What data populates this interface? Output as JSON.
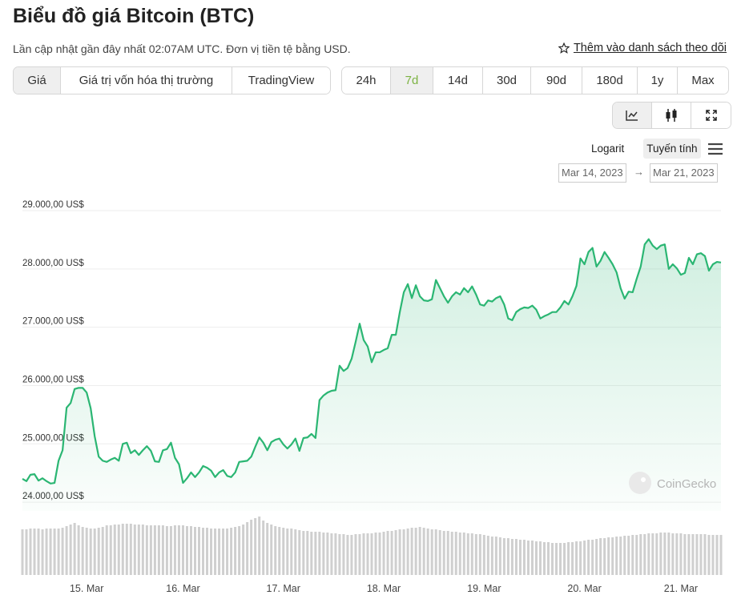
{
  "header": {
    "title": "Biểu đồ giá Bitcoin (BTC)",
    "subtitle": "Lần cập nhật gần đây nhất 02:07AM UTC. Đơn vị tiền tệ bằng USD.",
    "watchlist": "Thêm vào danh sách theo dõi"
  },
  "tabs": {
    "data_types": [
      "Giá",
      "Giá trị vốn hóa thị trường",
      "TradingView"
    ],
    "selected_data_type": 0,
    "ranges": [
      "24h",
      "7d",
      "14d",
      "30d",
      "90d",
      "180d",
      "1y",
      "Max"
    ],
    "selected_range": 1
  },
  "scale": {
    "log": "Logarit",
    "linear": "Tuyến tính",
    "selected": "linear"
  },
  "dates": {
    "from": "Mar 14, 2023",
    "separator": "→",
    "to": "Mar 21, 2023"
  },
  "chart_data": {
    "type": "line",
    "color": "#2bb673",
    "volume_color": "#cfcfcf",
    "grid": true,
    "watermark": "CoinGecko",
    "ylim": [
      23850,
      29000
    ],
    "yticks": [
      {
        "value": 24000,
        "label": "24.000,00 US$"
      },
      {
        "value": 25000,
        "label": "25.000,00 US$"
      },
      {
        "value": 26000,
        "label": "26.000,00 US$"
      },
      {
        "value": 27000,
        "label": "27.000,00 US$"
      },
      {
        "value": 28000,
        "label": "28.000,00 US$"
      },
      {
        "value": 29000,
        "label": "29.000,00 US$"
      }
    ],
    "categories": [
      null,
      null,
      null,
      null,
      null,
      null,
      null,
      null,
      null,
      null,
      null,
      null,
      null,
      null,
      null,
      null,
      "15. Mar",
      null,
      null,
      null,
      null,
      null,
      null,
      null,
      null,
      null,
      null,
      null,
      null,
      null,
      null,
      null,
      null,
      null,
      null,
      null,
      null,
      null,
      null,
      null,
      "16. Mar",
      null,
      null,
      null,
      null,
      null,
      null,
      null,
      null,
      null,
      null,
      null,
      null,
      null,
      null,
      null,
      null,
      null,
      null,
      null,
      null,
      null,
      null,
      null,
      null,
      "17. Mar",
      null,
      null,
      null,
      null,
      null,
      null,
      null,
      null,
      null,
      null,
      null,
      null,
      null,
      null,
      null,
      null,
      null,
      null,
      null,
      null,
      null,
      null,
      null,
      null,
      "18. Mar",
      null,
      null,
      null,
      null,
      null,
      null,
      null,
      null,
      null,
      null,
      null,
      null,
      null,
      null,
      null,
      null,
      null,
      null,
      null,
      null,
      null,
      null,
      null,
      null,
      "19. Mar",
      null,
      null,
      null,
      null,
      null,
      null,
      null,
      null,
      null,
      null,
      null,
      null,
      null,
      null,
      null,
      null,
      null,
      null,
      null,
      null,
      null,
      null,
      null,
      null,
      "20. Mar",
      null,
      null,
      null,
      null,
      null,
      null,
      null,
      null,
      null,
      null,
      null,
      null,
      null,
      null,
      null,
      null,
      null,
      null,
      null,
      null,
      null,
      null,
      null,
      "21. Mar",
      null,
      null,
      null,
      null,
      null,
      null,
      null,
      null,
      null,
      null
    ],
    "values": [
      24400,
      24360,
      24470,
      24480,
      24370,
      24410,
      24360,
      24320,
      24330,
      24710,
      24890,
      25620,
      25700,
      25940,
      25960,
      25960,
      25880,
      25610,
      25130,
      24780,
      24710,
      24690,
      24730,
      24760,
      24710,
      25000,
      25020,
      24840,
      24890,
      24810,
      24890,
      24960,
      24880,
      24700,
      24690,
      24890,
      24910,
      25020,
      24760,
      24650,
      24330,
      24410,
      24510,
      24430,
      24510,
      24620,
      24590,
      24540,
      24430,
      24510,
      24550,
      24450,
      24430,
      24510,
      24690,
      24700,
      24710,
      24780,
      24950,
      25110,
      25020,
      24890,
      25030,
      25070,
      25090,
      24990,
      24920,
      24990,
      25090,
      24880,
      25100,
      25110,
      25170,
      25100,
      25750,
      25830,
      25880,
      25910,
      25920,
      26340,
      26250,
      26300,
      26460,
      26750,
      27060,
      26780,
      26670,
      26400,
      26570,
      26570,
      26610,
      26640,
      26870,
      26870,
      27260,
      27600,
      27740,
      27500,
      27720,
      27530,
      27460,
      27450,
      27480,
      27810,
      27670,
      27530,
      27420,
      27530,
      27600,
      27560,
      27670,
      27600,
      27700,
      27560,
      27390,
      27370,
      27460,
      27440,
      27500,
      27530,
      27390,
      27150,
      27120,
      27260,
      27310,
      27340,
      27330,
      27370,
      27300,
      27150,
      27190,
      27220,
      27260,
      27260,
      27340,
      27450,
      27390,
      27530,
      27710,
      28180,
      28080,
      28290,
      28360,
      28040,
      28140,
      28290,
      28190,
      28080,
      27940,
      27670,
      27490,
      27610,
      27600,
      27830,
      28040,
      28420,
      28510,
      28400,
      28340,
      28400,
      28420,
      28000,
      28080,
      28010,
      27900,
      27930,
      28190,
      28080,
      28250,
      28270,
      28220,
      27970,
      28080,
      28120,
      28110
    ],
    "volume": [
      57,
      57,
      58,
      58,
      58,
      57,
      58,
      58,
      58,
      58,
      59,
      61,
      63,
      65,
      62,
      60,
      59,
      58,
      58,
      59,
      60,
      62,
      62,
      63,
      63,
      64,
      64,
      64,
      63,
      63,
      63,
      62,
      62,
      62,
      62,
      62,
      61,
      61,
      62,
      62,
      62,
      61,
      61,
      60,
      60,
      59,
      59,
      58,
      58,
      58,
      58,
      58,
      59,
      60,
      61,
      63,
      66,
      69,
      71,
      73,
      68,
      65,
      63,
      61,
      60,
      59,
      58,
      58,
      57,
      56,
      55,
      55,
      54,
      54,
      54,
      53,
      53,
      52,
      52,
      51,
      51,
      50,
      50,
      51,
      51,
      52,
      52,
      52,
      53,
      53,
      54,
      55,
      55,
      56,
      57,
      57,
      58,
      59,
      59,
      60,
      59,
      58,
      57,
      57,
      56,
      55,
      55,
      54,
      54,
      53,
      53,
      52,
      52,
      51,
      51,
      50,
      49,
      48,
      48,
      47,
      46,
      46,
      45,
      45,
      44,
      44,
      43,
      43,
      42,
      42,
      41,
      41,
      40,
      40,
      40,
      40,
      41,
      41,
      42,
      42,
      43,
      44,
      44,
      45,
      46,
      46,
      47,
      47,
      48,
      48,
      49,
      49,
      50,
      50,
      51,
      51,
      52,
      52,
      52,
      53,
      53,
      53,
      52,
      52,
      52,
      51,
      51,
      51,
      51,
      51,
      51,
      50,
      50,
      50,
      50
    ]
  }
}
